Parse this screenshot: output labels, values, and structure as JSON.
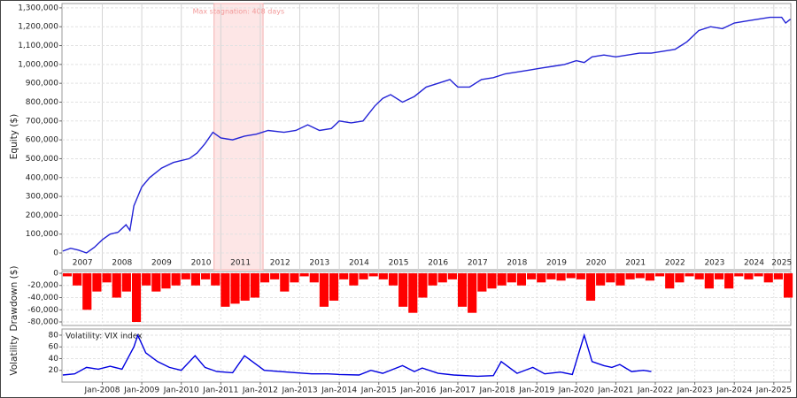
{
  "chart_data": [
    {
      "type": "line",
      "ylabel": "Equity ($)",
      "color": "#2424d6",
      "xlim": [
        2006.98,
        2025.43
      ],
      "ylim": [
        -89000,
        1323000
      ],
      "yticks": [
        0,
        {
          "value": 100000,
          "label": "100,000"
        },
        {
          "value": 200000,
          "label": "200,000"
        },
        {
          "value": 300000,
          "label": "300,000"
        },
        {
          "value": 400000,
          "label": "400,000"
        },
        {
          "value": 500000,
          "label": "500,000"
        },
        {
          "value": 600000,
          "label": "600,000"
        },
        {
          "value": 700000,
          "label": "700,000"
        },
        {
          "value": 800000,
          "label": "800,000"
        },
        {
          "value": 900000,
          "label": "900,000"
        },
        {
          "value": 1000000,
          "label": "1,000,000"
        },
        {
          "value": 1100000,
          "label": "1,100,000"
        },
        {
          "value": 1200000,
          "label": "1,200,000"
        },
        {
          "value": 1300000,
          "label": "1,300,000"
        }
      ],
      "xticks": [
        {
          "value": 2007.5,
          "label": "2007"
        },
        {
          "value": 2008.5,
          "label": "2008"
        },
        {
          "value": 2009.5,
          "label": "2009"
        },
        {
          "value": 2010.5,
          "label": "2010"
        },
        {
          "value": 2011.5,
          "label": "2011"
        },
        {
          "value": 2012.5,
          "label": "2012"
        },
        {
          "value": 2013.5,
          "label": "2013"
        },
        {
          "value": 2014.5,
          "label": "2014"
        },
        {
          "value": 2015.5,
          "label": "2015"
        },
        {
          "value": 2016.5,
          "label": "2016"
        },
        {
          "value": 2017.5,
          "label": "2017"
        },
        {
          "value": 2018.5,
          "label": "2018"
        },
        {
          "value": 2019.5,
          "label": "2019"
        },
        {
          "value": 2020.5,
          "label": "2020"
        },
        {
          "value": 2021.5,
          "label": "2021"
        },
        {
          "value": 2022.5,
          "label": "2022"
        },
        {
          "value": 2023.5,
          "label": "2023"
        },
        {
          "value": 2024.5,
          "label": "2024"
        },
        {
          "value": 2025.2,
          "label": "2025"
        }
      ],
      "annotation": {
        "text": "Max stagnation: 408 days",
        "x_range": [
          2010.83,
          2012.07
        ],
        "color": "#fde6e6"
      },
      "x": [
        2007.0,
        2007.2,
        2007.4,
        2007.6,
        2007.8,
        2008.0,
        2008.2,
        2008.4,
        2008.6,
        2008.7,
        2008.8,
        2009.0,
        2009.2,
        2009.5,
        2009.8,
        2010.2,
        2010.4,
        2010.6,
        2010.8,
        2011.0,
        2011.3,
        2011.6,
        2011.9,
        2012.2,
        2012.6,
        2012.9,
        2013.2,
        2013.5,
        2013.8,
        2014.0,
        2014.3,
        2014.6,
        2014.9,
        2015.1,
        2015.3,
        2015.6,
        2015.9,
        2016.2,
        2016.5,
        2016.8,
        2017.0,
        2017.3,
        2017.6,
        2017.9,
        2018.2,
        2018.5,
        2018.8,
        2019.1,
        2019.4,
        2019.7,
        2020.0,
        2020.2,
        2020.4,
        2020.7,
        2021.0,
        2021.3,
        2021.6,
        2021.9,
        2022.2,
        2022.5,
        2022.8,
        2023.1,
        2023.4,
        2023.7,
        2024.0,
        2024.3,
        2024.6,
        2024.9,
        2025.2,
        2025.3,
        2025.42
      ],
      "values": [
        10000,
        25000,
        15000,
        0,
        30000,
        70000,
        100000,
        110000,
        150000,
        120000,
        250000,
        350000,
        400000,
        450000,
        480000,
        500000,
        530000,
        580000,
        640000,
        610000,
        600000,
        620000,
        630000,
        650000,
        640000,
        650000,
        680000,
        650000,
        660000,
        700000,
        690000,
        700000,
        780000,
        820000,
        840000,
        800000,
        830000,
        880000,
        900000,
        920000,
        880000,
        880000,
        920000,
        930000,
        950000,
        960000,
        970000,
        980000,
        990000,
        1000000,
        1020000,
        1010000,
        1040000,
        1050000,
        1040000,
        1050000,
        1060000,
        1060000,
        1070000,
        1080000,
        1120000,
        1180000,
        1200000,
        1190000,
        1220000,
        1230000,
        1240000,
        1250000,
        1250000,
        1220000,
        1240000
      ]
    },
    {
      "type": "bar",
      "ylabel": "Drawdown ($)",
      "color": "#ff0000",
      "bar_width": 0.25,
      "xlim": [
        2006.98,
        2025.43
      ],
      "ylim": [
        -85800,
        2900
      ],
      "yticks": [
        0,
        {
          "value": -20000,
          "label": "-20,000"
        },
        {
          "value": -40000,
          "label": "-40,000"
        },
        {
          "value": -60000,
          "label": "-60,000"
        },
        {
          "value": -80000,
          "label": "-80,000"
        }
      ],
      "x": [
        2007.0,
        2007.25,
        2007.5,
        2007.75,
        2008.0,
        2008.25,
        2008.5,
        2008.75,
        2009.0,
        2009.25,
        2009.5,
        2009.75,
        2010.0,
        2010.25,
        2010.5,
        2010.75,
        2011.0,
        2011.25,
        2011.5,
        2011.75,
        2012.0,
        2012.25,
        2012.5,
        2012.75,
        2013.0,
        2013.25,
        2013.5,
        2013.75,
        2014.0,
        2014.25,
        2014.5,
        2014.75,
        2015.0,
        2015.25,
        2015.5,
        2015.75,
        2016.0,
        2016.25,
        2016.5,
        2016.75,
        2017.0,
        2017.25,
        2017.5,
        2017.75,
        2018.0,
        2018.25,
        2018.5,
        2018.75,
        2019.0,
        2019.25,
        2019.5,
        2019.75,
        2020.0,
        2020.25,
        2020.5,
        2020.75,
        2021.0,
        2021.25,
        2021.5,
        2021.75,
        2022.0,
        2022.25,
        2022.5,
        2022.75,
        2023.0,
        2023.25,
        2023.5,
        2023.75,
        2024.0,
        2024.25,
        2024.5,
        2024.75,
        2025.0,
        2025.25
      ],
      "values": [
        -5000,
        -20000,
        -60000,
        -30000,
        -15000,
        -40000,
        -30000,
        -80000,
        -20000,
        -30000,
        -25000,
        -20000,
        -10000,
        -20000,
        -10000,
        -20000,
        -55000,
        -50000,
        -45000,
        -40000,
        -15000,
        -10000,
        -30000,
        -15000,
        -5000,
        -15000,
        -55000,
        -45000,
        -10000,
        -20000,
        -10000,
        -5000,
        -10000,
        -20000,
        -55000,
        -65000,
        -40000,
        -20000,
        -15000,
        -10000,
        -55000,
        -65000,
        -30000,
        -25000,
        -20000,
        -15000,
        -20000,
        -10000,
        -15000,
        -10000,
        -12000,
        -8000,
        -10000,
        -45000,
        -20000,
        -15000,
        -20000,
        -10000,
        -8000,
        -12000,
        -5000,
        -25000,
        -15000,
        -5000,
        -10000,
        -25000,
        -10000,
        -25000,
        -5000,
        -10000,
        -5000,
        -15000,
        -10000,
        -40000
      ]
    },
    {
      "type": "line",
      "ylabel": "Volatility",
      "label": "Volatility: VIX index",
      "color": "#0000e0",
      "xlim": [
        2006.98,
        2025.43
      ],
      "ylim": [
        0,
        90.5
      ],
      "yticks": [
        20,
        40,
        60,
        80
      ],
      "xticks": [
        {
          "value": 2008,
          "label": "Jan-2008"
        },
        {
          "value": 2009,
          "label": "Jan-2009"
        },
        {
          "value": 2010,
          "label": "Jan-2010"
        },
        {
          "value": 2011,
          "label": "Jan-2011"
        },
        {
          "value": 2012,
          "label": "Jan-2012"
        },
        {
          "value": 2013,
          "label": "Jan-2013"
        },
        {
          "value": 2014,
          "label": "Jan-2014"
        },
        {
          "value": 2015,
          "label": "Jan-2015"
        },
        {
          "value": 2016,
          "label": "Jan-2016"
        },
        {
          "value": 2017,
          "label": "Jan-2017"
        },
        {
          "value": 2018,
          "label": "Jan-2018"
        },
        {
          "value": 2019,
          "label": "Jan-2019"
        },
        {
          "value": 2020,
          "label": "Jan-2020"
        },
        {
          "value": 2021,
          "label": "Jan-2021"
        },
        {
          "value": 2022,
          "label": "Jan-2022"
        },
        {
          "value": 2023,
          "label": "Jan-2023"
        },
        {
          "value": 2024,
          "label": "Jan-2024"
        },
        {
          "value": 2025,
          "label": "Jan-2025"
        }
      ],
      "x": [
        2007.0,
        2007.3,
        2007.6,
        2007.9,
        2008.2,
        2008.5,
        2008.8,
        2008.9,
        2009.1,
        2009.4,
        2009.7,
        2010.0,
        2010.35,
        2010.6,
        2010.9,
        2011.3,
        2011.6,
        2011.8,
        2012.1,
        2012.5,
        2012.9,
        2013.3,
        2013.7,
        2014.0,
        2014.5,
        2014.8,
        2015.1,
        2015.6,
        2015.9,
        2016.1,
        2016.5,
        2016.9,
        2017.5,
        2017.9,
        2018.1,
        2018.5,
        2018.9,
        2019.2,
        2019.6,
        2019.9,
        2020.2,
        2020.4,
        2020.7,
        2020.9,
        2021.1,
        2021.4,
        2021.7,
        2021.9
      ],
      "values": [
        12,
        14,
        25,
        22,
        27,
        22,
        60,
        80,
        50,
        35,
        25,
        20,
        45,
        25,
        18,
        16,
        45,
        35,
        20,
        18,
        16,
        14,
        14,
        13,
        12,
        20,
        15,
        28,
        18,
        24,
        15,
        12,
        10,
        11,
        35,
        15,
        25,
        14,
        17,
        13,
        80,
        35,
        28,
        25,
        30,
        18,
        20,
        18
      ]
    }
  ]
}
